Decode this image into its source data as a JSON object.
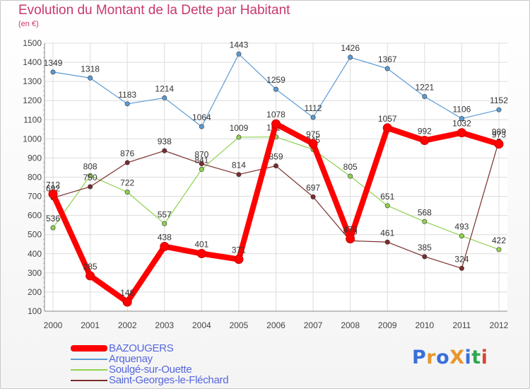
{
  "title": "Evolution du Montant de la Dette par Habitant",
  "subtitle": "(en €)",
  "logo": {
    "text": "ProXiti",
    "colors": [
      "#3a6fd8",
      "#e8962e",
      "#3a6fd8",
      "#e8962e",
      "#3a6fd8",
      "#2fa84f",
      "#d8473a"
    ]
  },
  "chart_data": {
    "type": "line",
    "x": [
      "2000",
      "2001",
      "2002",
      "2003",
      "2004",
      "2005",
      "2006",
      "2007",
      "2008",
      "2009",
      "2010",
      "2011",
      "2012"
    ],
    "ylim": [
      100,
      1500
    ],
    "yticks": [
      "100",
      "200",
      "300",
      "400",
      "500",
      "600",
      "700",
      "800",
      "900",
      "1000",
      "1100",
      "1200",
      "1300",
      "1400",
      "1500"
    ],
    "grid": true,
    "legend_position": "bottom-left",
    "series": [
      {
        "name": "Arquenay",
        "color": "#5b9bd5",
        "values": [
          1349,
          1318,
          1183,
          1214,
          1064,
          1443,
          1259,
          1112,
          1426,
          1367,
          1221,
          1106,
          1152
        ],
        "labels": [
          "1349",
          "1318",
          "1183",
          "1214",
          "1064",
          "1443",
          "1259",
          "1112",
          "1426",
          "1367",
          "1221",
          "1106",
          "1152"
        ]
      },
      {
        "name": "Soulgé-sur-Ouette",
        "color": "#8fd14f",
        "values": [
          536,
          808,
          722,
          557,
          841,
          1009,
          1010,
          945,
          805,
          651,
          568,
          493,
          422
        ],
        "labels": [
          "536",
          "808",
          "722",
          "557",
          "841",
          "1009",
          "1010",
          "945",
          "805",
          "651",
          "568",
          "493",
          "422"
        ]
      },
      {
        "name": "Saint-Georges-le-Fléchard",
        "color": "#7b2d2d",
        "values": [
          692,
          750,
          876,
          938,
          870,
          814,
          859,
          697,
          468,
          461,
          385,
          324,
          989
        ],
        "labels": [
          "692",
          "750",
          "876",
          "938",
          "870",
          "814",
          "859",
          "697",
          "468",
          "461",
          "385",
          "324",
          "989"
        ]
      },
      {
        "name": "BAZOUGERS",
        "color": "#ff0000",
        "values": [
          712,
          285,
          148,
          438,
          401,
          371,
          1078,
          975,
          478,
          1057,
          992,
          1032,
          973
        ],
        "labels": [
          "712",
          "285",
          "148",
          "438",
          "401",
          "371",
          "1078",
          "975",
          "478",
          "1057",
          "992",
          "1032",
          "973"
        ]
      }
    ]
  },
  "legend": [
    {
      "label": "BAZOUGERS",
      "color": "#ff0000",
      "thick": true
    },
    {
      "label": "Arquenay",
      "color": "#5b9bd5",
      "thick": false
    },
    {
      "label": "Soulgé-sur-Ouette",
      "color": "#8fd14f",
      "thick": false
    },
    {
      "label": "Saint-Georges-le-Fléchard",
      "color": "#7b2d2d",
      "thick": false
    }
  ]
}
